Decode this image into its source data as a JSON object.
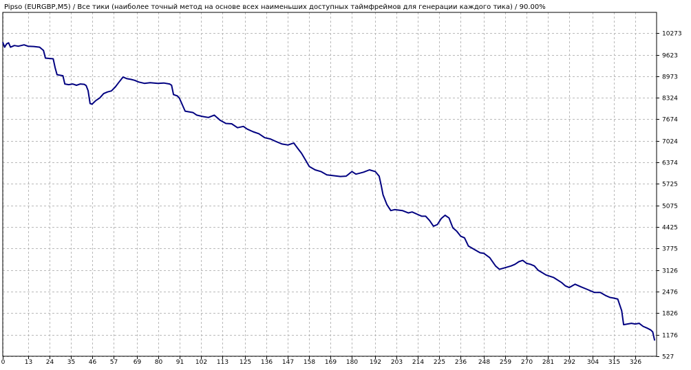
{
  "caption": "Pipso (EURGBP,M5) / Все тики (наиболее точный метод на основе всех наименьших доступных таймфреймов для генерации каждого тика) / 90.00%",
  "chart_data": {
    "type": "line",
    "title": "Pipso (EURGBP,M5) / Все тики (наиболее точный метод на основе всех наименьших доступных таймфреймов для генерации каждого тика) / 90.00%",
    "xlabel": "",
    "ylabel": "",
    "xlim": [
      0,
      337
    ],
    "ylim": [
      527,
      10900
    ],
    "grid": true,
    "line_color": "#000080",
    "x_ticks": [
      0,
      13,
      24,
      35,
      46,
      57,
      69,
      80,
      91,
      102,
      113,
      125,
      136,
      147,
      158,
      169,
      180,
      192,
      203,
      214,
      225,
      236,
      248,
      259,
      270,
      281,
      292,
      304,
      315,
      326
    ],
    "y_ticks": [
      527,
      1176,
      1826,
      2476,
      3126,
      3775,
      4425,
      5075,
      5725,
      6374,
      7024,
      7674,
      8324,
      8973,
      9623,
      10273
    ],
    "series": [
      {
        "x": [
          0,
          1,
          2,
          3,
          4,
          6,
          8,
          11,
          13,
          16,
          19,
          21,
          22,
          24,
          26,
          27,
          28,
          30,
          31,
          32,
          34,
          36,
          38,
          40,
          42,
          43,
          44,
          45,
          46,
          48,
          50,
          52,
          54,
          56,
          58,
          60,
          62,
          64,
          66,
          68,
          70,
          73,
          76,
          80,
          83,
          86,
          87,
          88,
          90,
          91,
          94,
          95,
          98,
          100,
          103,
          106,
          109,
          112,
          115,
          118,
          121,
          124,
          126,
          129,
          132,
          135,
          138,
          141,
          144,
          147,
          150,
          152,
          154,
          156,
          158,
          161,
          164,
          167,
          170,
          174,
          177,
          180,
          182,
          184,
          186,
          189,
          192,
          194,
          195,
          196,
          198,
          200,
          202,
          206,
          209,
          211,
          214,
          216,
          218,
          220,
          222,
          224,
          226,
          228,
          230,
          232,
          234,
          236,
          238,
          240,
          243,
          246,
          248,
          251,
          254,
          256,
          259,
          262,
          264,
          266,
          268,
          270,
          272,
          274,
          276,
          278,
          280,
          284,
          288,
          290,
          292,
          295,
          298,
          301,
          305,
          308,
          311,
          313,
          315,
          317,
          319,
          320,
          322,
          324,
          326,
          328,
          330,
          332,
          334,
          335,
          336
        ],
        "y": [
          10000,
          9850,
          9950,
          9980,
          9850,
          9900,
          9880,
          9920,
          9880,
          9870,
          9850,
          9750,
          9520,
          9510,
          9500,
          9230,
          9020,
          9000,
          8990,
          8740,
          8720,
          8740,
          8700,
          8740,
          8730,
          8690,
          8540,
          8150,
          8130,
          8240,
          8320,
          8450,
          8500,
          8530,
          8650,
          8800,
          8950,
          8900,
          8880,
          8850,
          8800,
          8760,
          8780,
          8760,
          8770,
          8740,
          8700,
          8420,
          8380,
          8320,
          7920,
          7910,
          7880,
          7800,
          7760,
          7730,
          7800,
          7650,
          7550,
          7540,
          7420,
          7460,
          7380,
          7300,
          7240,
          7120,
          7080,
          7000,
          6930,
          6900,
          6960,
          6800,
          6650,
          6450,
          6250,
          6150,
          6100,
          6000,
          5980,
          5950,
          5960,
          6100,
          6020,
          6050,
          6080,
          6150,
          6100,
          5960,
          5700,
          5400,
          5100,
          4920,
          4950,
          4920,
          4850,
          4880,
          4800,
          4750,
          4750,
          4620,
          4450,
          4500,
          4680,
          4780,
          4700,
          4400,
          4300,
          4150,
          4100,
          3850,
          3750,
          3650,
          3630,
          3500,
          3250,
          3150,
          3200,
          3250,
          3300,
          3380,
          3420,
          3330,
          3300,
          3250,
          3120,
          3050,
          2980,
          2900,
          2750,
          2650,
          2600,
          2700,
          2620,
          2550,
          2450,
          2450,
          2350,
          2300,
          2280,
          2250,
          1900,
          1480,
          1500,
          1520,
          1500,
          1520,
          1430,
          1380,
          1320,
          1260,
          1000
        ]
      }
    ]
  }
}
